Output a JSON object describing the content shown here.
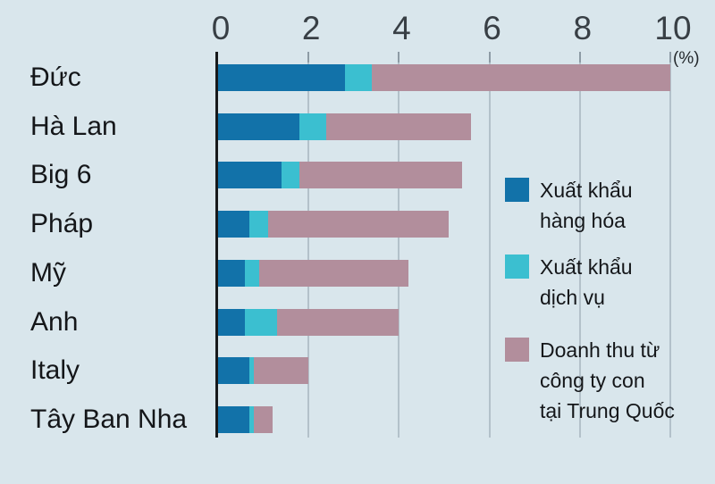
{
  "chart_data": {
    "type": "bar",
    "orientation": "horizontal",
    "stacked": true,
    "title": "",
    "unit_label": "(%)",
    "categories": [
      "Đức",
      "Hà Lan",
      "Big 6",
      "Pháp",
      "Mỹ",
      "Anh",
      "Italy",
      "Tây Ban Nha"
    ],
    "series": [
      {
        "name": "Xuất khẩu hàng hóa",
        "color": "#1272a9",
        "values": [
          2.8,
          1.8,
          1.4,
          0.7,
          0.6,
          0.6,
          0.7,
          0.7
        ]
      },
      {
        "name": "Xuất khẩu dịch vụ",
        "color": "#3bbfd0",
        "values": [
          0.6,
          0.6,
          0.4,
          0.4,
          0.3,
          0.7,
          0.1,
          0.1
        ]
      },
      {
        "name": "Doanh thu từ công ty con tại Trung Quốc",
        "color": "#b28e9c",
        "values": [
          6.6,
          3.2,
          3.6,
          4.0,
          3.3,
          2.7,
          1.2,
          0.4
        ]
      }
    ],
    "xlim": [
      0,
      10
    ],
    "xticks": [
      0,
      2,
      4,
      6,
      8,
      10
    ],
    "grid": true,
    "legend_position": "right",
    "palette": {
      "background": "#d9e6ec",
      "gridline": "#b3c1ca",
      "tick": "#8d9ba5",
      "axis": "#17191b"
    }
  },
  "legend": {
    "items": [
      {
        "label_lines": [
          "Xuất khẩu",
          "hàng hóa"
        ],
        "color": "#1272a9"
      },
      {
        "label_lines": [
          "Xuất khẩu",
          "dịch vụ"
        ],
        "color": "#3bbfd0"
      },
      {
        "label_lines": [
          "Doanh thu từ",
          "công ty con",
          "tại Trung Quốc"
        ],
        "color": "#b28e9c"
      }
    ]
  }
}
